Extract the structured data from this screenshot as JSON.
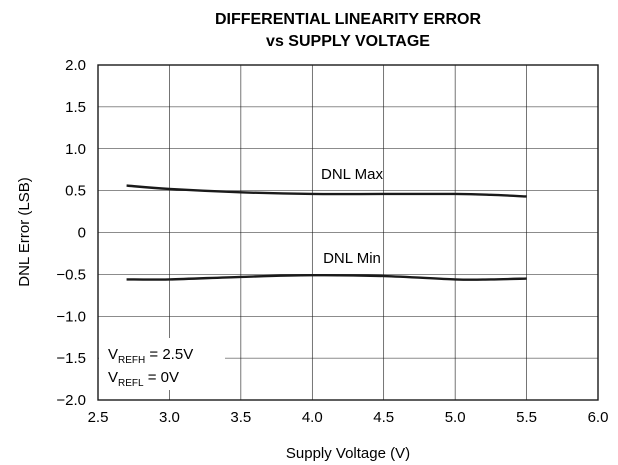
{
  "chart_data": {
    "type": "line",
    "title": "DIFFERENTIAL LINEARITY ERROR",
    "subtitle": "vs SUPPLY VOLTAGE",
    "xlabel": "Supply Voltage (V)",
    "ylabel": "DNL Error (LSB)",
    "xlim": [
      2.5,
      6.0
    ],
    "ylim": [
      -2.0,
      2.0
    ],
    "xticks": [
      "2.5",
      "3.0",
      "3.5",
      "4.0",
      "4.5",
      "5.0",
      "5.5",
      "6.0"
    ],
    "yticks": [
      "2.0",
      "1.5",
      "1.0",
      "0.5",
      "0",
      "−0.5",
      "−1.0",
      "−1.5",
      "−2.0"
    ],
    "grid": true,
    "series": [
      {
        "name": "DNL Max",
        "x": [
          2.7,
          3.0,
          3.5,
          4.0,
          4.5,
          5.0,
          5.25,
          5.5
        ],
        "y": [
          0.56,
          0.52,
          0.48,
          0.46,
          0.46,
          0.46,
          0.45,
          0.43
        ]
      },
      {
        "name": "DNL Min",
        "x": [
          2.7,
          3.0,
          3.5,
          4.0,
          4.5,
          5.0,
          5.25,
          5.5
        ],
        "y": [
          -0.56,
          -0.56,
          -0.53,
          -0.51,
          -0.52,
          -0.56,
          -0.56,
          -0.55
        ]
      }
    ],
    "annotations": {
      "line1_main": "V",
      "line1_sub": "REFH",
      "line1_rest": " = 2.5V",
      "line2_main": "V",
      "line2_sub": "REFL",
      "line2_rest": " = 0V"
    },
    "colors": {
      "line": "#1a1a1a",
      "grid": "#1a1a1a"
    }
  }
}
